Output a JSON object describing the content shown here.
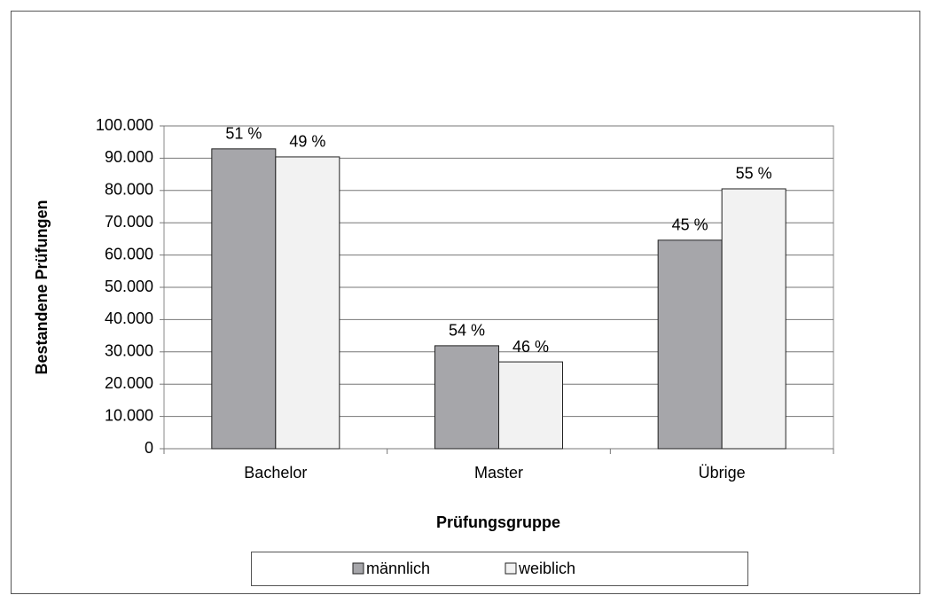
{
  "chart_data": {
    "type": "bar",
    "x_label": "Prüfungsgruppe",
    "y_label": "Bestandene Prüfungen",
    "categories": [
      "Bachelor",
      "Master",
      "Übrige"
    ],
    "series": [
      {
        "name": "männlich",
        "color": "#a6a6aa",
        "values": [
          92900,
          31900,
          64600
        ],
        "percent_labels": [
          "51 %",
          "54 %",
          "45 %"
        ]
      },
      {
        "name": "weiblich",
        "color": "#f2f2f2",
        "values": [
          90400,
          26900,
          80500
        ],
        "percent_labels": [
          "49 %",
          "46 %",
          "55 %"
        ]
      }
    ],
    "ylim": [
      0,
      100000
    ],
    "yticks": [
      0,
      {
        "value": 10000,
        "label": "10.000"
      },
      {
        "value": 20000,
        "label": "20.000"
      },
      {
        "value": 30000,
        "label": "30.000"
      },
      {
        "value": 40000,
        "label": "40.000"
      },
      {
        "value": 50000,
        "label": "50.000"
      },
      {
        "value": 60000,
        "label": "60.000"
      },
      {
        "value": 70000,
        "label": "70.000"
      },
      {
        "value": 80000,
        "label": "80.000"
      },
      {
        "value": 90000,
        "label": "90.000"
      },
      {
        "value": 100000,
        "label": "100.000"
      }
    ],
    "grid": true,
    "legend": "bottom"
  }
}
